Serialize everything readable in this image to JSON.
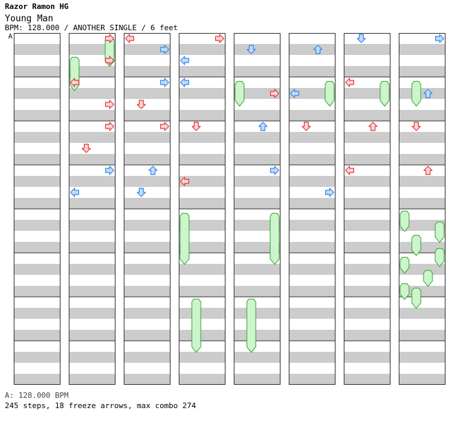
{
  "header": {
    "artist": "Razor Ramon HG",
    "title": "Young Man",
    "info": "BPM: 128.000 / ANOTHER SINGLE / 6 feet",
    "bpm_marker": "A"
  },
  "footer": {
    "bpm_legend": "A: 128.000 BPM",
    "summary": "245 steps, 18 freeze arrows, max combo 274"
  },
  "colors": {
    "arrow_red_fill": "#ffd6d6",
    "arrow_red_stroke": "#e03a3a",
    "arrow_blue_fill": "#bfdcff",
    "arrow_blue_stroke": "#3a85e0",
    "freeze_fill": "#ccf5cc",
    "freeze_stroke": "#3aa03a",
    "stripe": "#cccccc"
  },
  "chart_data": {
    "type": "step-chart",
    "columns": 8,
    "measures_per_column": 8,
    "lanes": [
      "left",
      "down",
      "up",
      "right"
    ],
    "notes": [
      {
        "col": 1,
        "measure": 0,
        "beat": 0,
        "lane": "right",
        "color": "red"
      },
      {
        "col": 1,
        "measure": 0,
        "beat": 2,
        "lane": "right",
        "color": "red"
      },
      {
        "col": 1,
        "measure": 1,
        "beat": 0,
        "lane": "left",
        "color": "red"
      },
      {
        "col": 1,
        "measure": 1,
        "beat": 2,
        "lane": "right",
        "color": "red"
      },
      {
        "col": 1,
        "measure": 2,
        "beat": 0,
        "lane": "right",
        "color": "red"
      },
      {
        "col": 1,
        "measure": 2,
        "beat": 2,
        "lane": "down",
        "color": "red"
      },
      {
        "col": 1,
        "measure": 3,
        "beat": 0,
        "lane": "right",
        "color": "blue"
      },
      {
        "col": 1,
        "measure": 3,
        "beat": 2,
        "lane": "left",
        "color": "blue"
      },
      {
        "col": 2,
        "measure": 0,
        "beat": 0,
        "lane": "left",
        "color": "red"
      },
      {
        "col": 2,
        "measure": 0,
        "beat": 1,
        "lane": "right",
        "color": "blue"
      },
      {
        "col": 2,
        "measure": 1,
        "beat": 0,
        "lane": "right",
        "color": "blue"
      },
      {
        "col": 2,
        "measure": 1,
        "beat": 2,
        "lane": "down",
        "color": "red"
      },
      {
        "col": 2,
        "measure": 2,
        "beat": 0,
        "lane": "right",
        "color": "red"
      },
      {
        "col": 2,
        "measure": 3,
        "beat": 0,
        "lane": "up",
        "color": "blue"
      },
      {
        "col": 2,
        "measure": 3,
        "beat": 2,
        "lane": "down",
        "color": "blue"
      },
      {
        "col": 3,
        "measure": 0,
        "beat": 0,
        "lane": "right",
        "color": "red"
      },
      {
        "col": 3,
        "measure": 0,
        "beat": 2,
        "lane": "left",
        "color": "blue"
      },
      {
        "col": 3,
        "measure": 1,
        "beat": 0,
        "lane": "left",
        "color": "blue"
      },
      {
        "col": 3,
        "measure": 2,
        "beat": 0,
        "lane": "down",
        "color": "red"
      },
      {
        "col": 3,
        "measure": 3,
        "beat": 1,
        "lane": "left",
        "color": "red"
      },
      {
        "col": 4,
        "measure": 0,
        "beat": 1,
        "lane": "down",
        "color": "blue"
      },
      {
        "col": 4,
        "measure": 1,
        "beat": 1,
        "lane": "right",
        "color": "red"
      },
      {
        "col": 4,
        "measure": 2,
        "beat": 0,
        "lane": "up",
        "color": "blue"
      },
      {
        "col": 4,
        "measure": 3,
        "beat": 0,
        "lane": "right",
        "color": "blue"
      },
      {
        "col": 5,
        "measure": 0,
        "beat": 1,
        "lane": "up",
        "color": "blue"
      },
      {
        "col": 5,
        "measure": 1,
        "beat": 1,
        "lane": "left",
        "color": "blue"
      },
      {
        "col": 5,
        "measure": 2,
        "beat": 0,
        "lane": "down",
        "color": "red"
      },
      {
        "col": 5,
        "measure": 3,
        "beat": 2,
        "lane": "right",
        "color": "blue"
      },
      {
        "col": 6,
        "measure": 0,
        "beat": 0,
        "lane": "down",
        "color": "blue"
      },
      {
        "col": 6,
        "measure": 1,
        "beat": 0,
        "lane": "left",
        "color": "red"
      },
      {
        "col": 6,
        "measure": 2,
        "beat": 0,
        "lane": "up",
        "color": "red"
      },
      {
        "col": 6,
        "measure": 3,
        "beat": 0,
        "lane": "left",
        "color": "red"
      },
      {
        "col": 7,
        "measure": 0,
        "beat": 0,
        "lane": "right",
        "color": "blue"
      },
      {
        "col": 7,
        "measure": 1,
        "beat": 1,
        "lane": "up",
        "color": "blue"
      },
      {
        "col": 7,
        "measure": 2,
        "beat": 0,
        "lane": "down",
        "color": "red"
      },
      {
        "col": 7,
        "measure": 3,
        "beat": 0,
        "lane": "up",
        "color": "red"
      }
    ],
    "freezes": [
      {
        "col": 1,
        "lane": "right",
        "start": 0.1,
        "end": 0.7
      },
      {
        "col": 1,
        "lane": "left",
        "start": 0.55,
        "end": 1.25
      },
      {
        "col": 3,
        "lane": "left",
        "start": 4.1,
        "end": 5.2
      },
      {
        "col": 3,
        "lane": "down",
        "start": 6.05,
        "end": 7.2
      },
      {
        "col": 4,
        "lane": "left",
        "start": 1.1,
        "end": 1.6
      },
      {
        "col": 4,
        "lane": "right",
        "start": 4.1,
        "end": 5.2
      },
      {
        "col": 4,
        "lane": "down",
        "start": 6.05,
        "end": 7.2
      },
      {
        "col": 5,
        "lane": "right",
        "start": 1.1,
        "end": 1.6
      },
      {
        "col": 6,
        "lane": "right",
        "start": 1.1,
        "end": 1.6
      },
      {
        "col": 7,
        "lane": "down",
        "start": 1.1,
        "end": 1.6
      },
      {
        "col": 7,
        "lane": "left",
        "start": 4.05,
        "end": 4.45
      },
      {
        "col": 7,
        "lane": "down",
        "start": 4.6,
        "end": 5.0
      },
      {
        "col": 7,
        "lane": "right",
        "start": 4.3,
        "end": 4.7
      },
      {
        "col": 7,
        "lane": "right",
        "start": 4.9,
        "end": 5.25
      },
      {
        "col": 7,
        "lane": "left",
        "start": 5.1,
        "end": 5.4
      },
      {
        "col": 7,
        "lane": "up",
        "start": 5.4,
        "end": 5.7
      },
      {
        "col": 7,
        "lane": "left",
        "start": 5.7,
        "end": 6.0
      },
      {
        "col": 7,
        "lane": "down",
        "start": 5.8,
        "end": 6.2
      }
    ]
  }
}
